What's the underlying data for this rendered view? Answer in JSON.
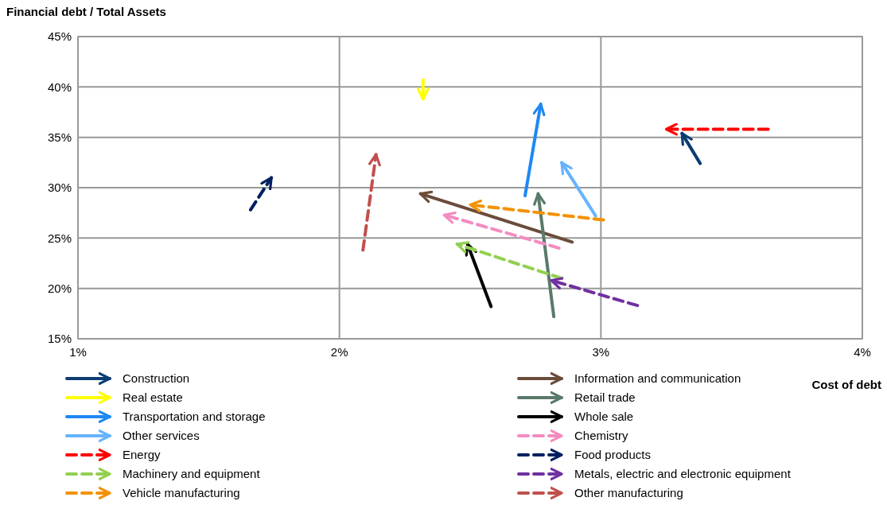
{
  "chart_data": {
    "type": "line",
    "xlabel": "Cost of debt",
    "ylabel": "Financial debt / Total Assets",
    "xlim": [
      1,
      4
    ],
    "xticks": [
      {
        "value": 1,
        "label": "1%"
      },
      {
        "value": 2,
        "label": "2%"
      },
      {
        "value": 3,
        "label": "3%"
      },
      {
        "value": 4,
        "label": "4%"
      }
    ],
    "ylim": [
      15,
      45
    ],
    "yticks": [
      {
        "value": 15,
        "label": "15%"
      },
      {
        "value": 20,
        "label": "20%"
      },
      {
        "value": 25,
        "label": "25%"
      },
      {
        "value": 30,
        "label": "30%"
      },
      {
        "value": 35,
        "label": "35%"
      },
      {
        "value": 40,
        "label": "40%"
      },
      {
        "value": 45,
        "label": "45%"
      }
    ],
    "grid": true,
    "legend": "bottom",
    "series": [
      {
        "name": "Construction",
        "color": "#0b3d73",
        "line_style": "solid",
        "x": [
          3.38,
          3.31
        ],
        "values": [
          32.4,
          35.4
        ]
      },
      {
        "name": "Information and communication",
        "color": "#6b4c3a",
        "line_style": "solid",
        "x": [
          2.89,
          2.31
        ],
        "values": [
          24.6,
          29.4
        ]
      },
      {
        "name": "Real estate",
        "color": "#ffff00",
        "line_style": "solid",
        "x": [
          2.32,
          2.32
        ],
        "values": [
          40.7,
          38.8
        ]
      },
      {
        "name": "Retail trade",
        "color": "#5a7a6a",
        "line_style": "solid",
        "x": [
          2.82,
          2.76
        ],
        "values": [
          17.2,
          29.4
        ]
      },
      {
        "name": "Transportation and storage",
        "color": "#1e88f5",
        "line_style": "solid",
        "x": [
          2.71,
          2.77
        ],
        "values": [
          29.2,
          38.3
        ]
      },
      {
        "name": "Whole sale",
        "color": "#000000",
        "line_style": "solid",
        "x": [
          2.58,
          2.49
        ],
        "values": [
          18.2,
          24.4
        ]
      },
      {
        "name": "Other services",
        "color": "#66b3ff",
        "line_style": "solid",
        "x": [
          2.98,
          2.85
        ],
        "values": [
          27.2,
          32.5
        ]
      },
      {
        "name": "Chemistry",
        "color": "#f48cc0",
        "line_style": "dashed",
        "x": [
          2.84,
          2.4
        ],
        "values": [
          24.0,
          27.3
        ]
      },
      {
        "name": "Energy",
        "color": "#ff0000",
        "line_style": "dashed",
        "x": [
          3.64,
          3.25
        ],
        "values": [
          35.8,
          35.8
        ]
      },
      {
        "name": "Food products",
        "color": "#002060",
        "line_style": "dashed",
        "x": [
          1.66,
          1.74
        ],
        "values": [
          27.8,
          31.0
        ]
      },
      {
        "name": "Machinery and equipment",
        "color": "#92d050",
        "line_style": "dashed",
        "x": [
          2.85,
          2.45
        ],
        "values": [
          21.0,
          24.4
        ]
      },
      {
        "name": "Metals, electric and electronic equipment",
        "color": "#7030a0",
        "line_style": "dashed",
        "x": [
          3.14,
          2.81
        ],
        "values": [
          18.3,
          20.8
        ]
      },
      {
        "name": "Vehicle manufacturing",
        "color": "#f39200",
        "line_style": "dashed",
        "x": [
          3.01,
          2.5
        ],
        "values": [
          26.8,
          28.3
        ]
      },
      {
        "name": "Other manufacturing",
        "color": "#c0504d",
        "line_style": "dashed",
        "x": [
          2.09,
          2.14
        ],
        "values": [
          23.8,
          33.3
        ]
      }
    ]
  }
}
